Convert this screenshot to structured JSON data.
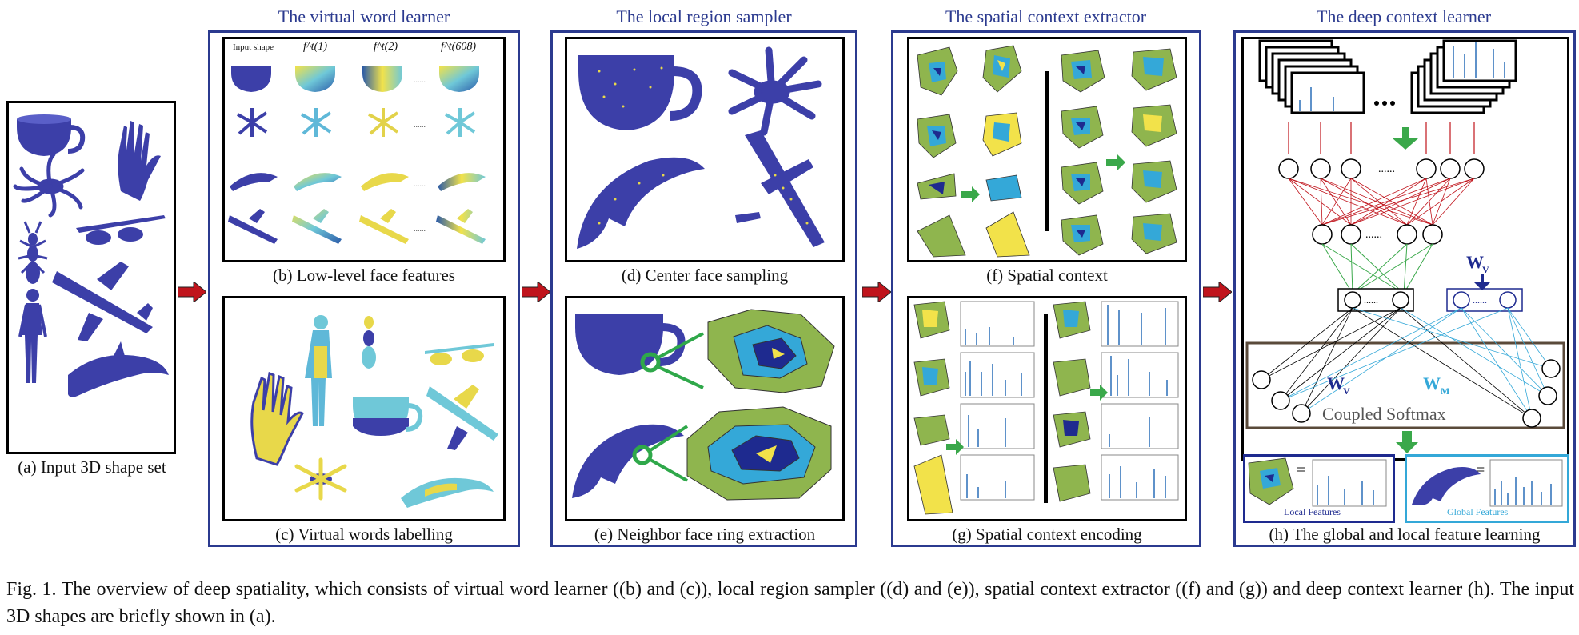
{
  "stages": {
    "vwl": "The virtual word learner",
    "lrs": "The local region sampler",
    "sce": "The spatial context extractor",
    "dcl": "The deep context learner"
  },
  "panels": {
    "a": "(a) Input 3D shape set",
    "b": "(b) Low-level face features",
    "c": "(c) Virtual words labelling",
    "d": "(d) Center face sampling",
    "e": "(e) Neighbor face ring extraction",
    "f": "(f) Spatial context",
    "g": "(g) Spatial context encoding",
    "h": "(h) The global and local feature learning"
  },
  "panel_b": {
    "col_labels": [
      "Input shape",
      "f^t(1)",
      "f^t(2)",
      "f^t(608)"
    ],
    "ellipsis": "......"
  },
  "panel_h": {
    "coupled_softmax": "Coupled Softmax",
    "wv": "W",
    "wv_sub": "V",
    "wm": "W",
    "wm_sub": "M",
    "local_features": "Local Features",
    "global_features": "Global Features",
    "dots": "......",
    "equals": "="
  },
  "figure_caption": "Fig. 1.  The overview of deep spatiality, which consists of virtual word learner ((b) and (c)), local region sampler ((d) and (e)), spatial context extractor ((f) and (g)) and deep context learner (h). The input 3D shapes are briefly shown in (a).",
  "colors": {
    "shape_blue": "#3c3fa8",
    "accent_navy": "#2b3a8f",
    "arrow_red": "#c0141c",
    "green": "#3aa84a",
    "yellow": "#f2e24a",
    "cyan": "#34a8d8",
    "mesh_green": "#8fb54e"
  }
}
